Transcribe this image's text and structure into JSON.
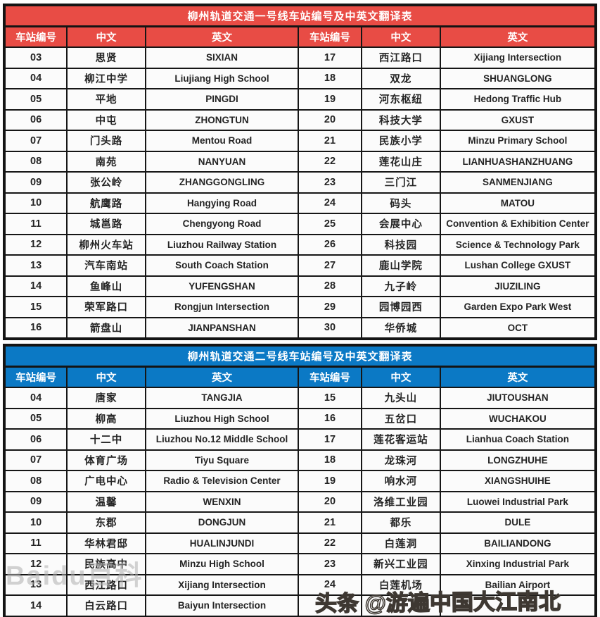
{
  "page": {
    "background": "#ffffff",
    "border_color": "#141414"
  },
  "watermarks": {
    "baidu_label": "Baidu百科",
    "toutiao_label": "头条 @游遍中国大江南北"
  },
  "tables": [
    {
      "title": "柳州轨道交通一号线车站编号及中英文翻译表",
      "accent": "#e84c45",
      "columns": [
        "车站编号",
        "中文",
        "英文",
        "车站编号",
        "中文",
        "英文"
      ],
      "rows": [
        [
          "03",
          "思贤",
          "SIXIAN",
          "17",
          "西江路口",
          "Xijiang Intersection"
        ],
        [
          "04",
          "柳江中学",
          "Liujiang High School",
          "18",
          "双龙",
          "SHUANGLONG"
        ],
        [
          "05",
          "平地",
          "PINGDI",
          "19",
          "河东枢纽",
          "Hedong Traffic Hub"
        ],
        [
          "06",
          "中屯",
          "ZHONGTUN",
          "20",
          "科技大学",
          "GXUST"
        ],
        [
          "07",
          "门头路",
          "Mentou Road",
          "21",
          "民族小学",
          "Minzu Primary School"
        ],
        [
          "08",
          "南苑",
          "NANYUAN",
          "22",
          "莲花山庄",
          "LIANHUASHANZHUANG"
        ],
        [
          "09",
          "张公岭",
          "ZHANGGONGLING",
          "23",
          "三门江",
          "SANMENJIANG"
        ],
        [
          "10",
          "航鹰路",
          "Hangying Road",
          "24",
          "码头",
          "MATOU"
        ],
        [
          "11",
          "城邕路",
          "Chengyong Road",
          "25",
          "会展中心",
          "Convention & Exhibition Center"
        ],
        [
          "12",
          "柳州火车站",
          "Liuzhou Railway Station",
          "26",
          "科技园",
          "Science & Technology Park"
        ],
        [
          "13",
          "汽车南站",
          "South Coach Station",
          "27",
          "鹿山学院",
          "Lushan College GXUST"
        ],
        [
          "14",
          "鱼峰山",
          "YUFENGSHAN",
          "28",
          "九子岭",
          "JIUZILING"
        ],
        [
          "15",
          "荣军路口",
          "Rongjun Intersection",
          "29",
          "园博园西",
          "Garden Expo Park West"
        ],
        [
          "16",
          "箭盘山",
          "JIANPANSHAN",
          "30",
          "华侨城",
          "OCT"
        ]
      ]
    },
    {
      "title": "柳州轨道交通二号线车站编号及中英文翻译表",
      "accent": "#0b79c5",
      "columns": [
        "车站编号",
        "中文",
        "英文",
        "车站编号",
        "中文",
        "英文"
      ],
      "rows": [
        [
          "04",
          "唐家",
          "TANGJIA",
          "15",
          "九头山",
          "JIUTOUSHAN"
        ],
        [
          "05",
          "柳高",
          "Liuzhou High School",
          "16",
          "五岔口",
          "WUCHAKOU"
        ],
        [
          "06",
          "十二中",
          "Liuzhou No.12 Middle School",
          "17",
          "莲花客运站",
          "Lianhua Coach Station"
        ],
        [
          "07",
          "体育广场",
          "Tiyu Square",
          "18",
          "龙珠河",
          "LONGZHUHE"
        ],
        [
          "08",
          "广电中心",
          "Radio & Television Center",
          "19",
          "响水河",
          "XIANGSHUIHE"
        ],
        [
          "09",
          "温馨",
          "WENXIN",
          "20",
          "洛维工业园",
          "Luowei Industrial Park"
        ],
        [
          "10",
          "东郡",
          "DONGJUN",
          "21",
          "都乐",
          "DULE"
        ],
        [
          "11",
          "华林君邸",
          "HUALINJUNDI",
          "22",
          "白莲洞",
          "BAILIANDONG"
        ],
        [
          "12",
          "民族高中",
          "Minzu High School",
          "23",
          "新兴工业园",
          "Xinxing Industrial Park"
        ],
        [
          "13",
          "西江路口",
          "Xijiang Intersection",
          "24",
          "白莲机场",
          "Bailian Airport"
        ],
        [
          "14",
          "白云路口",
          "Baiyun Intersection",
          "",
          "",
          ""
        ]
      ]
    }
  ]
}
